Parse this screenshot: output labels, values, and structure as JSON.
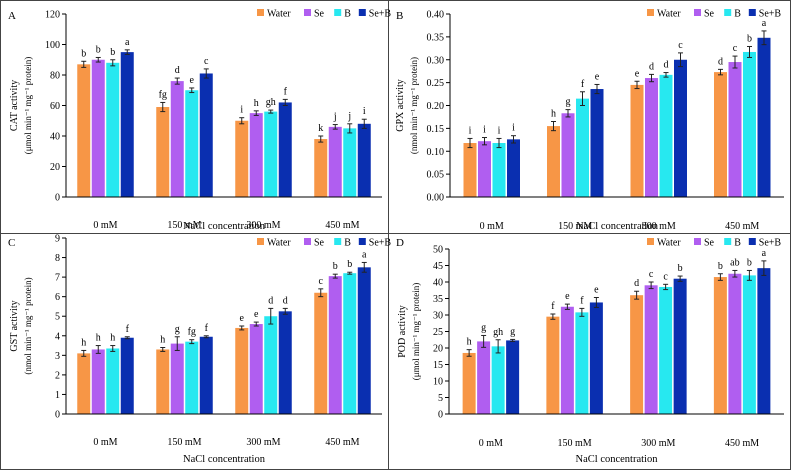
{
  "figure": {
    "series_colors": [
      "#f79646",
      "#b05ef0",
      "#27e8f0",
      "#0a2fb0"
    ],
    "sig_bg": "#ffffff"
  },
  "chart_data": [
    {
      "panel": "A",
      "type": "bar",
      "categories": [
        "0 mM",
        "150 mM",
        "300 mM",
        "450 mM"
      ],
      "xlabel": "NaCl  concentration",
      "ylabel_line1": "CAT activity",
      "ylabel_line2": "(μmol min⁻¹ mg⁻¹ protein)",
      "ylim": [
        0,
        120
      ],
      "yticks": [
        0,
        20,
        40,
        60,
        80,
        100,
        120
      ],
      "ytick_labels": [
        "0",
        "20",
        "40",
        "60",
        "80",
        "100",
        "120"
      ],
      "legend": "top-right",
      "series": [
        {
          "name": "Water",
          "values": [
            87,
            59,
            50,
            38
          ],
          "errors": [
            2,
            3,
            2,
            2
          ],
          "letters": [
            "b",
            "fg",
            "i",
            "k"
          ]
        },
        {
          "name": "Se",
          "values": [
            90,
            76,
            55,
            46
          ],
          "errors": [
            1.5,
            2,
            1.5,
            1.5
          ],
          "letters": [
            "b",
            "d",
            "h",
            "j"
          ]
        },
        {
          "name": "B",
          "values": [
            88,
            70,
            56,
            45
          ],
          "errors": [
            2,
            1.5,
            1,
            3
          ],
          "letters": [
            "b",
            "e",
            "gh",
            "j"
          ]
        },
        {
          "name": "Se+B",
          "values": [
            95,
            81,
            62,
            48
          ],
          "errors": [
            1.5,
            3,
            2,
            3
          ],
          "letters": [
            "a",
            "c",
            "f",
            "i"
          ]
        }
      ]
    },
    {
      "panel": "B",
      "type": "bar",
      "categories": [
        "0 mM",
        "150 mM",
        "300 mM",
        "450 mM"
      ],
      "xlabel": "NaCl  concentration",
      "ylabel_line1": "GPX activity",
      "ylabel_line2": "(nmol min⁻¹ mg⁻¹ protein)",
      "ylim": [
        0,
        0.4
      ],
      "yticks": [
        0,
        0.05,
        0.1,
        0.15,
        0.2,
        0.25,
        0.3,
        0.35,
        0.4
      ],
      "ytick_labels": [
        "0.00",
        "0.05",
        "0.10",
        "0.15",
        "0.20",
        "0.25",
        "0.30",
        "0.35",
        "0.40"
      ],
      "legend": "top-right",
      "series": [
        {
          "name": "Water",
          "values": [
            0.118,
            0.155,
            0.245,
            0.273
          ],
          "errors": [
            0.01,
            0.01,
            0.008,
            0.006
          ],
          "letters": [
            "i",
            "h",
            "e",
            "d"
          ]
        },
        {
          "name": "Se",
          "values": [
            0.122,
            0.183,
            0.26,
            0.295
          ],
          "errors": [
            0.008,
            0.008,
            0.008,
            0.013
          ],
          "letters": [
            "i",
            "g",
            "d",
            "c"
          ]
        },
        {
          "name": "B",
          "values": [
            0.118,
            0.215,
            0.267,
            0.317
          ],
          "errors": [
            0.01,
            0.015,
            0.005,
            0.012
          ],
          "letters": [
            "i",
            "f",
            "d",
            "b"
          ]
        },
        {
          "name": "Se+B",
          "values": [
            0.126,
            0.236,
            0.3,
            0.348
          ],
          "errors": [
            0.008,
            0.01,
            0.015,
            0.015
          ],
          "letters": [
            "i",
            "e",
            "c",
            "a"
          ]
        }
      ]
    },
    {
      "panel": "C",
      "type": "bar",
      "categories": [
        "0 mM",
        "150 mM",
        "300 mM",
        "450 mM"
      ],
      "xlabel": "NaCl  concentration",
      "ylabel_line1": "GST activity",
      "ylabel_line2": "(nmol min⁻¹ mg⁻¹ protein)",
      "ylim": [
        0,
        9
      ],
      "yticks": [
        0,
        1,
        2,
        3,
        4,
        5,
        6,
        7,
        8,
        9
      ],
      "ytick_labels": [
        "0",
        "1",
        "2",
        "3",
        "4",
        "5",
        "6",
        "7",
        "8",
        "9"
      ],
      "legend": "top-right",
      "series": [
        {
          "name": "Water",
          "values": [
            3.1,
            3.3,
            4.4,
            6.2
          ],
          "errors": [
            0.15,
            0.1,
            0.1,
            0.2
          ],
          "letters": [
            "h",
            "h",
            "e",
            "c"
          ]
        },
        {
          "name": "Se",
          "values": [
            3.3,
            3.6,
            4.6,
            7.05
          ],
          "errors": [
            0.2,
            0.35,
            0.1,
            0.1
          ],
          "letters": [
            "h",
            "g",
            "e",
            "b"
          ]
        },
        {
          "name": "B",
          "values": [
            3.35,
            3.7,
            5.0,
            7.2
          ],
          "errors": [
            0.15,
            0.1,
            0.4,
            0.05
          ],
          "letters": [
            "h",
            "fg",
            "d",
            "b"
          ]
        },
        {
          "name": "Se+B",
          "values": [
            3.9,
            3.95,
            5.25,
            7.5
          ],
          "errors": [
            0.05,
            0.05,
            0.15,
            0.25
          ],
          "letters": [
            "f",
            "f",
            "d",
            "a"
          ]
        }
      ]
    },
    {
      "panel": "D",
      "type": "bar",
      "categories": [
        "0 mM",
        "150 mM",
        "300 mM",
        "450 mM"
      ],
      "xlabel": "NaCl  concentration",
      "ylabel_line1": "POD activity",
      "ylabel_line2": "(μmol min⁻¹ mg⁻¹ protein)",
      "ylim": [
        0,
        50
      ],
      "yticks": [
        0,
        5,
        10,
        15,
        20,
        25,
        30,
        35,
        40,
        45,
        50
      ],
      "ytick_labels": [
        "0",
        "5",
        "10",
        "15",
        "20",
        "25",
        "30",
        "35",
        "40",
        "45",
        "50"
      ],
      "legend": "top-right",
      "series": [
        {
          "name": "Water",
          "values": [
            18.5,
            29.5,
            36,
            41.5
          ],
          "errors": [
            1,
            0.8,
            1.2,
            1
          ],
          "letters": [
            "h",
            "f",
            "d",
            "b"
          ]
        },
        {
          "name": "Se",
          "values": [
            22,
            32.5,
            39,
            42.5
          ],
          "errors": [
            1.8,
            0.8,
            1,
            1
          ],
          "letters": [
            "g",
            "e",
            "c",
            "ab"
          ]
        },
        {
          "name": "B",
          "values": [
            20.5,
            30.8,
            38.5,
            42
          ],
          "errors": [
            2,
            1.2,
            0.8,
            1.5
          ],
          "letters": [
            "gh",
            "f",
            "c",
            "b"
          ]
        },
        {
          "name": "Se+B",
          "values": [
            22.3,
            33.8,
            41,
            44.2
          ],
          "errors": [
            0.3,
            1.5,
            0.8,
            2.2
          ],
          "letters": [
            "g",
            "e",
            "b",
            "a"
          ]
        }
      ]
    }
  ]
}
